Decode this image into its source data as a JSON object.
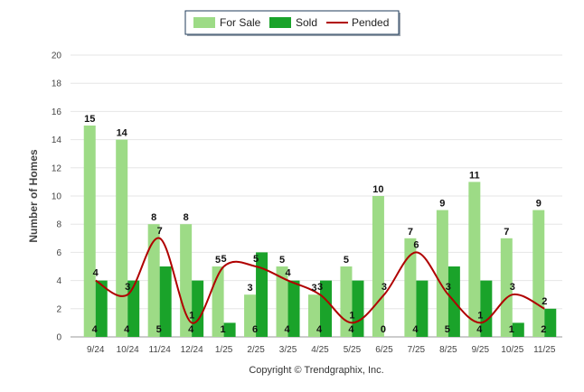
{
  "credit": "Copyright © Trendgraphix, Inc.",
  "colors": {
    "for_sale": "#9ddb86",
    "sold": "#1aa32a",
    "pended": "#b00000"
  },
  "chart_data": {
    "type": "bar",
    "ylabel": "Number of Homes",
    "ylim": [
      0,
      20
    ],
    "yticks": [
      0,
      2,
      4,
      6,
      8,
      10,
      12,
      14,
      16,
      18,
      20
    ],
    "grid": true,
    "legend_position": "top-center",
    "categories": [
      "9/24",
      "10/24",
      "11/24",
      "12/24",
      "1/25",
      "2/25",
      "3/25",
      "4/25",
      "5/25",
      "6/25",
      "7/25",
      "8/25",
      "9/25",
      "10/25",
      "11/25"
    ],
    "series": [
      {
        "name": "For Sale",
        "kind": "bar",
        "values": [
          15,
          14,
          8,
          8,
          5,
          3,
          5,
          3,
          5,
          10,
          7,
          9,
          11,
          7,
          9
        ]
      },
      {
        "name": "Sold",
        "kind": "bar",
        "values": [
          4,
          4,
          5,
          4,
          1,
          6,
          4,
          4,
          4,
          0,
          4,
          5,
          4,
          1,
          2
        ]
      },
      {
        "name": "Pended",
        "kind": "line",
        "values": [
          4,
          3,
          7,
          1,
          5,
          5,
          4,
          3,
          1,
          3,
          6,
          3,
          1,
          3,
          2
        ]
      }
    ]
  }
}
